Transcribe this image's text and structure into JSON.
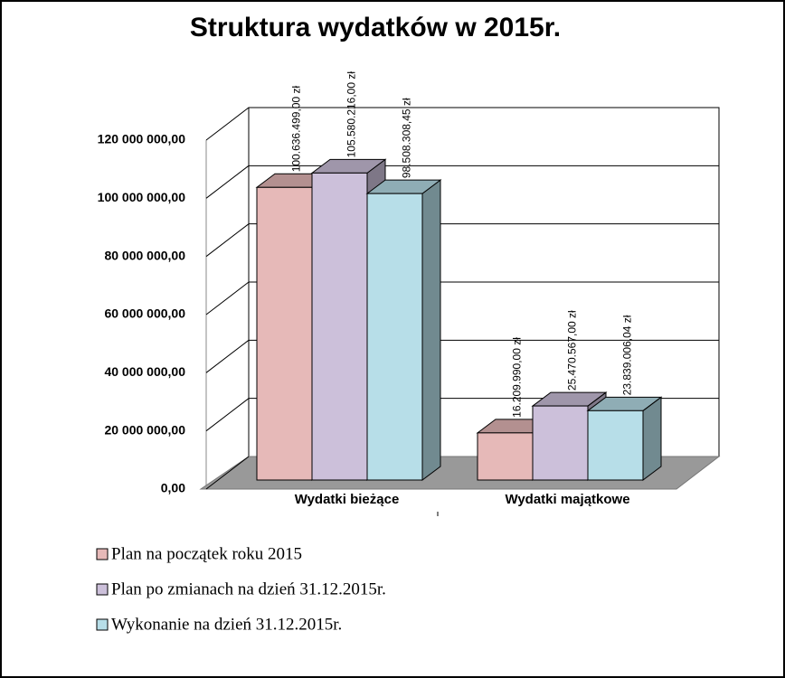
{
  "chart_data": {
    "type": "bar3d",
    "title": "Struktura wydatków  w 2015r.",
    "categories": [
      "Wydatki bieżące",
      "Wydatki  majątkowe"
    ],
    "series": [
      {
        "name": "Plan na początek roku 2015",
        "color": "#e6b9b8",
        "values": [
          100636499.0,
          16209990.0
        ],
        "value_labels": [
          "100.636.499,00 zł",
          "16.209.990,00 zł"
        ]
      },
      {
        "name": "Plan po zmianach na dzień 31.12.2015r.",
        "color": "#ccc0da",
        "values": [
          105580216.0,
          25470567.0
        ],
        "value_labels": [
          "105.580.216,00 zł",
          "25.470.567,00 zł"
        ]
      },
      {
        "name": "Wykonanie na dzień 31.12.2015r.",
        "color": "#b7dee8",
        "values": [
          98508308.45,
          23839006.04
        ],
        "value_labels": [
          "98.508.308,45 zł",
          "23.839.006,04 zł"
        ]
      }
    ],
    "ylim": [
      0,
      120000000
    ],
    "yticks": [
      {
        "value": 0,
        "label": "0,00"
      },
      {
        "value": 20000000,
        "label": "20 000 000,00"
      },
      {
        "value": 40000000,
        "label": "40 000 000,00"
      },
      {
        "value": 60000000,
        "label": "60 000 000,00"
      },
      {
        "value": 80000000,
        "label": "80 000 000,00"
      },
      {
        "value": 100000000,
        "label": "100 000 000,00"
      },
      {
        "value": 120000000,
        "label": "120 000 000,00"
      }
    ],
    "grid": true
  }
}
